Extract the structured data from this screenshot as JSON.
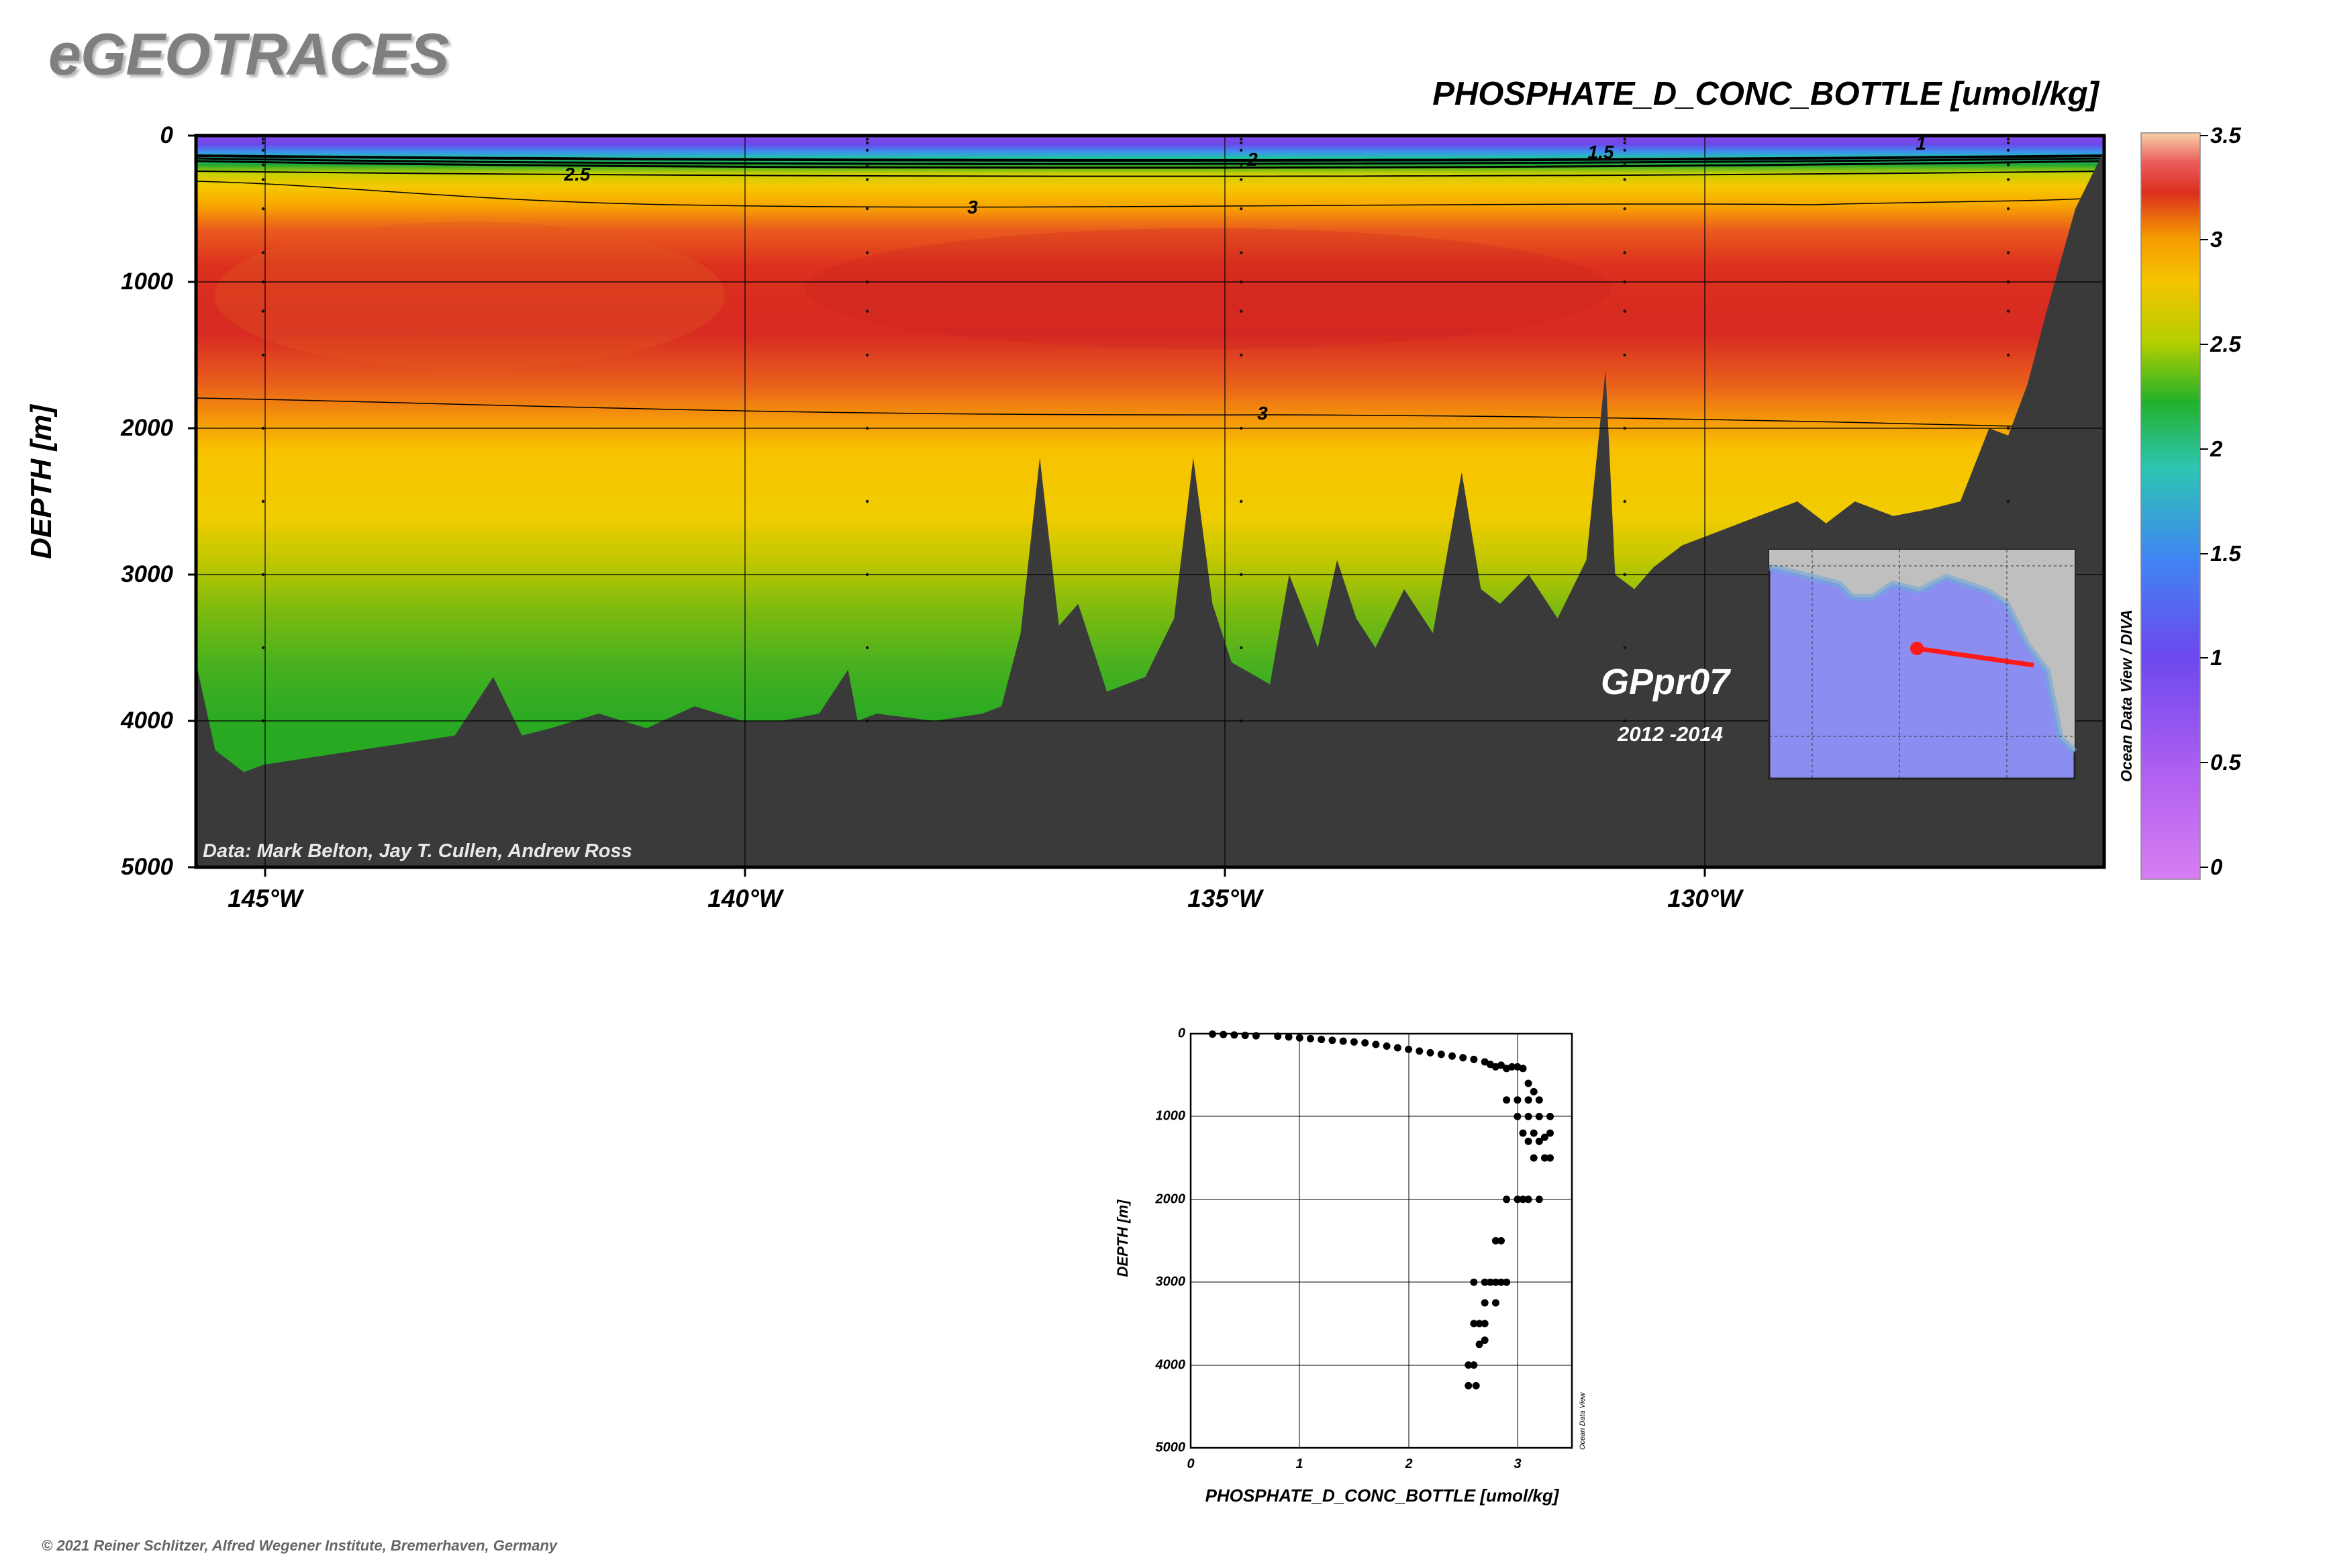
{
  "header": {
    "logo_text": "eGEOTRACES",
    "copyright": "© 2021 Reiner Schlitzer, Alfred Wegener Institute, Bremerhaven, Germany"
  },
  "chart_data": [
    {
      "type": "heatmap",
      "title": "PHOSPHATE_D_CONC_BOTTLE [umol/kg]",
      "xlabel": "",
      "ylabel": "DEPTH [m]",
      "x_ticks": [
        "145°W",
        "140°W",
        "135°W",
        "130°W"
      ],
      "x_tick_values": [
        -145,
        -140,
        -135,
        -130
      ],
      "xlim": [
        -145.7,
        -125.8
      ],
      "y_ticks": [
        "0",
        "1000",
        "2000",
        "3000",
        "4000",
        "5000"
      ],
      "y_tick_values": [
        0,
        1000,
        2000,
        3000,
        4000,
        5000
      ],
      "ylim": [
        5000,
        0
      ],
      "grid": true,
      "colorbar": {
        "min": 0,
        "max": 3.5,
        "tick_labels": [
          "3.5",
          "3",
          "2.5",
          "2",
          "1.5",
          "1",
          "0.5",
          "0"
        ],
        "tick_values": [
          3.5,
          3,
          2.5,
          2,
          1.5,
          1,
          0.5,
          0
        ],
        "colors": [
          "#d97ff0",
          "#9a55ee",
          "#6646ee",
          "#3fa3f0",
          "#2dc9b0",
          "#22b12a",
          "#f3d300",
          "#f8a400",
          "#dc2f1e",
          "#ea5b5b",
          "#f7cfa3"
        ]
      },
      "contour_labels": [
        "2.5",
        "2",
        "1.5",
        "1",
        "3",
        "3"
      ],
      "annotations": {
        "credit": "Data: Mark Belton, Jay T. Cullen, Andrew Ross",
        "cruise": "GPpr07",
        "years": "2012 -2014",
        "software": "Ocean Data View / DIVA"
      },
      "stations_lon": [
        -145,
        -138.7,
        -134.8,
        -130.8,
        -126.8
      ],
      "bottom_profile": {
        "lon": [
          -145.7,
          -145.5,
          -145.2,
          -145.0,
          -144.5,
          -144.0,
          -143.5,
          -143.0,
          -142.6,
          -142.3,
          -142.0,
          -141.5,
          -141.0,
          -140.5,
          -140.0,
          -139.6,
          -139.2,
          -138.9,
          -138.8,
          -138.6,
          -138.0,
          -137.5,
          -137.3,
          -137.1,
          -136.9,
          -136.7,
          -136.5,
          -136.2,
          -135.8,
          -135.5,
          -135.3,
          -135.1,
          -134.9,
          -134.5,
          -134.3,
          -134.0,
          -133.8,
          -133.6,
          -133.4,
          -133.1,
          -132.8,
          -132.5,
          -132.3,
          -132.1,
          -131.8,
          -131.5,
          -131.2,
          -131.0,
          -130.9,
          -130.7,
          -130.5,
          -130.2,
          -129.8,
          -129.4,
          -129.0,
          -128.7,
          -128.4,
          -128.0,
          -127.6,
          -127.3,
          -127.0,
          -126.8,
          -126.6,
          -126.4,
          -126.1,
          -125.8
        ],
        "depth": [
          3600,
          4200,
          4350,
          4300,
          4250,
          4200,
          4150,
          4100,
          3700,
          4100,
          4050,
          3950,
          4050,
          3900,
          4000,
          4000,
          3950,
          3650,
          4000,
          3950,
          4000,
          3950,
          3900,
          3400,
          2200,
          3350,
          3200,
          3800,
          3700,
          3300,
          2200,
          3200,
          3600,
          3750,
          3000,
          3500,
          2900,
          3300,
          3500,
          3100,
          3400,
          2300,
          3100,
          3200,
          3000,
          3300,
          2900,
          1600,
          3000,
          3100,
          2950,
          2800,
          2700,
          2600,
          2500,
          2650,
          2500,
          2600,
          2550,
          2500,
          2000,
          2050,
          1700,
          1200,
          500,
          100
        ]
      }
    },
    {
      "type": "scatter",
      "xlabel": "PHOSPHATE_D_CONC_BOTTLE [umol/kg]",
      "ylabel": "DEPTH [m]",
      "x_ticks": [
        "0",
        "1",
        "2",
        "3"
      ],
      "x_tick_values": [
        0,
        1,
        2,
        3
      ],
      "xlim": [
        0,
        3.5
      ],
      "y_ticks": [
        "0",
        "1000",
        "2000",
        "3000",
        "4000",
        "5000"
      ],
      "y_tick_values": [
        0,
        1000,
        2000,
        3000,
        4000,
        5000
      ],
      "ylim": [
        5000,
        0
      ],
      "grid": true,
      "software": "Ocean Data View",
      "points": {
        "x": [
          0.2,
          0.3,
          0.4,
          0.5,
          0.6,
          0.8,
          0.9,
          1.0,
          1.1,
          1.2,
          1.3,
          1.4,
          1.5,
          1.6,
          1.7,
          1.8,
          1.9,
          2.0,
          2.1,
          2.2,
          2.3,
          2.4,
          2.5,
          2.6,
          2.7,
          2.75,
          2.8,
          2.85,
          2.9,
          2.95,
          3.0,
          3.05,
          3.1,
          3.15,
          2.9,
          3.0,
          3.1,
          3.2,
          3.0,
          3.1,
          3.2,
          3.3,
          3.05,
          3.15,
          3.25,
          3.1,
          3.2,
          3.3,
          3.15,
          3.25,
          3.3,
          3.1,
          3.2,
          2.9,
          3.0,
          3.05,
          2.8,
          2.85,
          2.75,
          2.85,
          2.9,
          2.6,
          2.7,
          2.8,
          2.7,
          2.8,
          2.6,
          2.65,
          2.7,
          2.65,
          2.7,
          2.55,
          2.6,
          2.55,
          2.62
        ],
        "y": [
          5,
          10,
          15,
          20,
          25,
          30,
          40,
          50,
          60,
          70,
          80,
          90,
          100,
          110,
          130,
          150,
          170,
          190,
          210,
          230,
          250,
          270,
          290,
          310,
          340,
          370,
          400,
          380,
          420,
          400,
          400,
          420,
          600,
          700,
          800,
          800,
          800,
          800,
          1000,
          1000,
          1000,
          1000,
          1200,
          1200,
          1250,
          1300,
          1300,
          1200,
          1500,
          1500,
          1500,
          2000,
          2000,
          2000,
          2000,
          2000,
          2500,
          2500,
          3000,
          3000,
          3000,
          3000,
          3000,
          3000,
          3250,
          3250,
          3500,
          3500,
          3500,
          3750,
          3700,
          4000,
          4000,
          4250,
          4250
        ]
      }
    }
  ]
}
